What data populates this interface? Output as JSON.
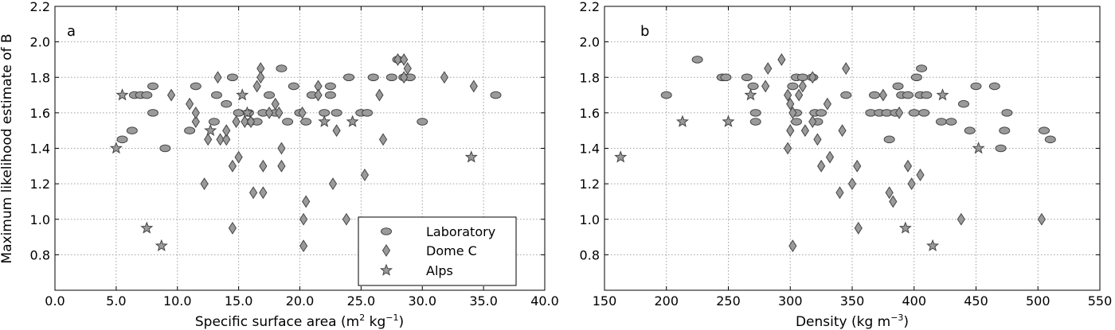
{
  "chart_data": [
    {
      "type": "scatter",
      "panel_label": "a",
      "xlabel": "Specific surface area (m",
      "xlabel_sup1": "2",
      "xlabel_mid": " kg",
      "xlabel_sup2": "−1",
      "xlabel_end": ")",
      "ylabel": "Maximum likelihood estimate of B",
      "xlim": [
        0,
        40
      ],
      "ylim": [
        0.6,
        2.2
      ],
      "xticks": [
        "0.0",
        "5.0",
        "10.0",
        "15.0",
        "20.0",
        "25.0",
        "30.0",
        "35.0",
        "40.0"
      ],
      "yticks": [
        "0.8",
        "1.0",
        "1.2",
        "1.4",
        "1.6",
        "1.8",
        "2.0",
        "2.2"
      ],
      "grid": true,
      "legend_position": "lower-right",
      "series": [
        {
          "name": "Laboratory",
          "marker": "ellipse",
          "points": [
            [
              5.5,
              1.45
            ],
            [
              6.3,
              1.5
            ],
            [
              6.5,
              1.7
            ],
            [
              7.0,
              1.7
            ],
            [
              7.5,
              1.7
            ],
            [
              8.0,
              1.75
            ],
            [
              8.0,
              1.6
            ],
            [
              9.0,
              1.4
            ],
            [
              11.0,
              1.5
            ],
            [
              11.5,
              1.75
            ],
            [
              13.0,
              1.55
            ],
            [
              13.2,
              1.7
            ],
            [
              14.0,
              1.65
            ],
            [
              14.5,
              1.8
            ],
            [
              15.0,
              1.6
            ],
            [
              15.8,
              1.6
            ],
            [
              16.0,
              1.55
            ],
            [
              16.5,
              1.55
            ],
            [
              17.0,
              1.6
            ],
            [
              17.5,
              1.7
            ],
            [
              18.0,
              1.6
            ],
            [
              18.5,
              1.85
            ],
            [
              19.0,
              1.55
            ],
            [
              19.5,
              1.75
            ],
            [
              20.0,
              1.6
            ],
            [
              20.5,
              1.55
            ],
            [
              21.0,
              1.7
            ],
            [
              22.0,
              1.6
            ],
            [
              22.5,
              1.75
            ],
            [
              22.5,
              1.7
            ],
            [
              23.0,
              1.6
            ],
            [
              24.0,
              1.8
            ],
            [
              25.0,
              1.6
            ],
            [
              25.5,
              1.6
            ],
            [
              26.0,
              1.8
            ],
            [
              27.5,
              1.8
            ],
            [
              28.0,
              1.9
            ],
            [
              28.5,
              1.8
            ],
            [
              29.0,
              1.8
            ],
            [
              30.0,
              1.55
            ],
            [
              36.0,
              1.7
            ]
          ]
        },
        {
          "name": "Dome C",
          "marker": "diamond",
          "points": [
            [
              9.5,
              1.7
            ],
            [
              11.0,
              1.65
            ],
            [
              11.5,
              1.55
            ],
            [
              11.5,
              1.6
            ],
            [
              12.2,
              1.2
            ],
            [
              12.5,
              1.45
            ],
            [
              13.3,
              1.8
            ],
            [
              13.5,
              1.45
            ],
            [
              14.0,
              1.45
            ],
            [
              14.0,
              1.5
            ],
            [
              14.5,
              0.95
            ],
            [
              14.5,
              1.3
            ],
            [
              14.8,
              1.55
            ],
            [
              15.0,
              1.35
            ],
            [
              15.5,
              1.55
            ],
            [
              16.0,
              1.55
            ],
            [
              16.2,
              1.15
            ],
            [
              16.5,
              1.75
            ],
            [
              16.8,
              1.85
            ],
            [
              16.8,
              1.8
            ],
            [
              17.0,
              1.15
            ],
            [
              17.0,
              1.3
            ],
            [
              17.5,
              1.6
            ],
            [
              18.0,
              1.65
            ],
            [
              18.3,
              1.6
            ],
            [
              18.5,
              1.3
            ],
            [
              18.5,
              1.4
            ],
            [
              20.2,
              1.6
            ],
            [
              20.3,
              1.0
            ],
            [
              20.3,
              0.85
            ],
            [
              20.5,
              1.1
            ],
            [
              21.5,
              1.75
            ],
            [
              21.5,
              1.7
            ],
            [
              22.7,
              1.2
            ],
            [
              23.0,
              1.5
            ],
            [
              23.8,
              1.0
            ],
            [
              25.3,
              1.25
            ],
            [
              26.5,
              1.7
            ],
            [
              26.8,
              1.45
            ],
            [
              28.0,
              1.9
            ],
            [
              28.5,
              1.9
            ],
            [
              28.5,
              1.8
            ],
            [
              28.8,
              1.85
            ],
            [
              31.8,
              1.8
            ],
            [
              34.2,
              1.75
            ]
          ]
        },
        {
          "name": "Alps",
          "marker": "star",
          "points": [
            [
              5.0,
              1.4
            ],
            [
              5.5,
              1.7
            ],
            [
              7.5,
              0.95
            ],
            [
              8.7,
              0.85
            ],
            [
              12.7,
              1.5
            ],
            [
              15.3,
              1.7
            ],
            [
              15.7,
              1.6
            ],
            [
              22.0,
              1.55
            ],
            [
              24.3,
              1.55
            ],
            [
              34.0,
              1.35
            ]
          ]
        }
      ]
    },
    {
      "type": "scatter",
      "panel_label": "b",
      "xlabel": "Density (kg m",
      "xlabel_sup": "−3",
      "xlabel_end": ")",
      "ylabel": "",
      "xlim": [
        150,
        550
      ],
      "ylim": [
        0.6,
        2.2
      ],
      "xticks": [
        "150",
        "200",
        "250",
        "300",
        "350",
        "400",
        "450",
        "500",
        "550"
      ],
      "yticks": [
        "0.8",
        "1.0",
        "1.2",
        "1.4",
        "1.6",
        "1.8",
        "2.0",
        "2.2"
      ],
      "grid": true,
      "series": [
        {
          "name": "Laboratory",
          "marker": "ellipse",
          "points": [
            [
              200,
              1.7
            ],
            [
              225,
              1.9
            ],
            [
              245,
              1.8
            ],
            [
              248,
              1.8
            ],
            [
              265,
              1.8
            ],
            [
              270,
              1.75
            ],
            [
              272,
              1.6
            ],
            [
              272,
              1.55
            ],
            [
              302,
              1.75
            ],
            [
              305,
              1.8
            ],
            [
              305,
              1.6
            ],
            [
              305,
              1.55
            ],
            [
              310,
              1.8
            ],
            [
              318,
              1.8
            ],
            [
              320,
              1.6
            ],
            [
              322,
              1.55
            ],
            [
              325,
              1.6
            ],
            [
              345,
              1.7
            ],
            [
              365,
              1.6
            ],
            [
              368,
              1.7
            ],
            [
              372,
              1.6
            ],
            [
              378,
              1.6
            ],
            [
              380,
              1.45
            ],
            [
              385,
              1.6
            ],
            [
              387,
              1.75
            ],
            [
              390,
              1.7
            ],
            [
              395,
              1.7
            ],
            [
              400,
              1.6
            ],
            [
              402,
              1.8
            ],
            [
              405,
              1.7
            ],
            [
              406,
              1.85
            ],
            [
              408,
              1.6
            ],
            [
              410,
              1.7
            ],
            [
              422,
              1.55
            ],
            [
              430,
              1.55
            ],
            [
              440,
              1.65
            ],
            [
              445,
              1.5
            ],
            [
              450,
              1.75
            ],
            [
              465,
              1.75
            ],
            [
              470,
              1.4
            ],
            [
              473,
              1.5
            ],
            [
              475,
              1.6
            ],
            [
              505,
              1.5
            ],
            [
              510,
              1.45
            ]
          ]
        },
        {
          "name": "Dome C",
          "marker": "diamond",
          "points": [
            [
              280,
              1.75
            ],
            [
              282,
              1.85
            ],
            [
              293,
              1.9
            ],
            [
              298,
              1.7
            ],
            [
              298,
              1.4
            ],
            [
              300,
              1.65
            ],
            [
              300,
              1.5
            ],
            [
              302,
              1.6
            ],
            [
              302,
              0.85
            ],
            [
              307,
              1.7
            ],
            [
              310,
              1.75
            ],
            [
              312,
              1.5
            ],
            [
              318,
              1.55
            ],
            [
              318,
              1.8
            ],
            [
              322,
              1.45
            ],
            [
              325,
              1.3
            ],
            [
              330,
              1.65
            ],
            [
              332,
              1.35
            ],
            [
              340,
              1.15
            ],
            [
              342,
              1.5
            ],
            [
              345,
              1.85
            ],
            [
              350,
              1.2
            ],
            [
              354,
              1.3
            ],
            [
              355,
              0.95
            ],
            [
              375,
              1.7
            ],
            [
              380,
              1.15
            ],
            [
              383,
              1.1
            ],
            [
              388,
              1.6
            ],
            [
              395,
              1.3
            ],
            [
              398,
              1.2
            ],
            [
              405,
              1.25
            ],
            [
              438,
              1.0
            ],
            [
              503,
              1.0
            ]
          ]
        },
        {
          "name": "Alps",
          "marker": "star",
          "points": [
            [
              163,
              1.35
            ],
            [
              213,
              1.55
            ],
            [
              250,
              1.55
            ],
            [
              268,
              1.7
            ],
            [
              393,
              0.95
            ],
            [
              415,
              0.85
            ],
            [
              423,
              1.7
            ],
            [
              452,
              1.4
            ]
          ]
        }
      ]
    }
  ],
  "colors": {
    "marker_fill": "#9a9a9a",
    "marker_stroke": "#444444",
    "grid": "#a0a0a0",
    "axis": "#000000"
  }
}
